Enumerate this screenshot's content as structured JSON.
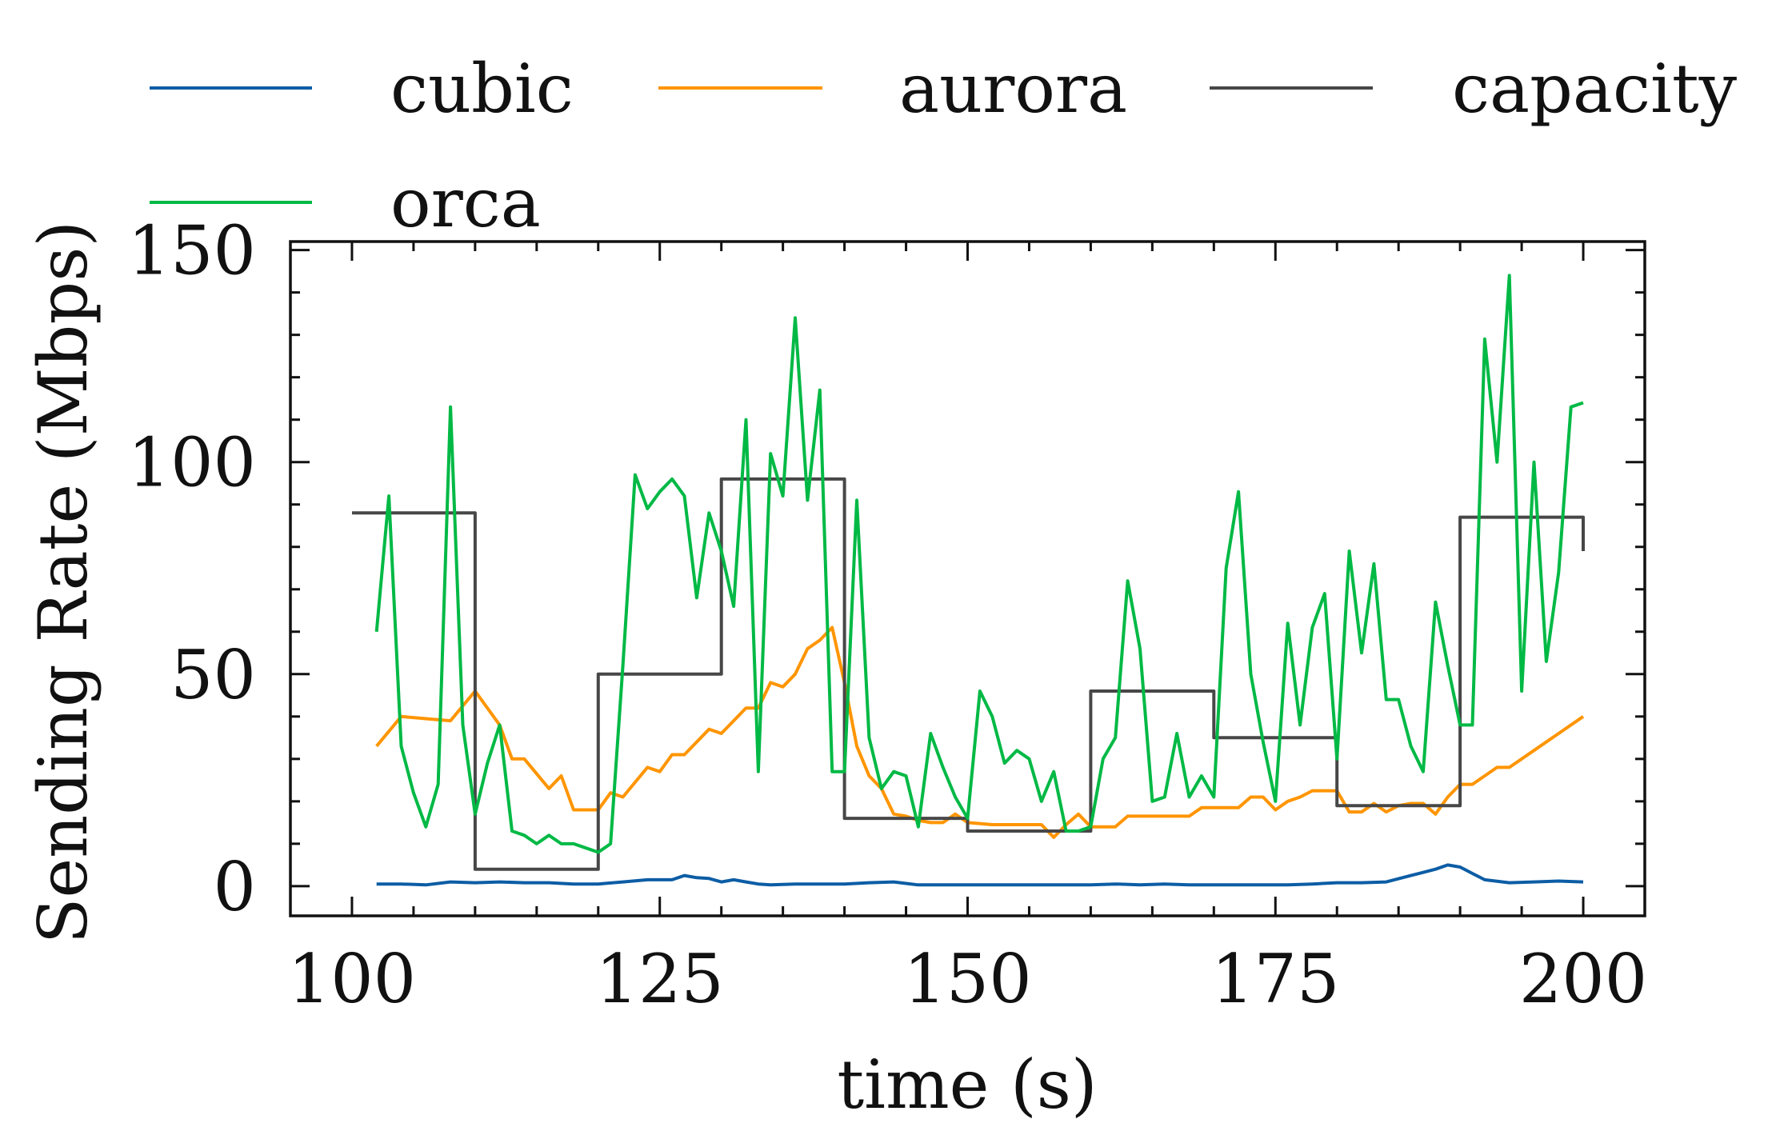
{
  "chart_data": {
    "type": "line",
    "xlabel": "time (s)",
    "ylabel": "Sending Rate (Mbps)",
    "xlim": [
      95,
      205
    ],
    "ylim": [
      -7,
      152
    ],
    "xticks": [
      100,
      125,
      150,
      175,
      200
    ],
    "yticks": [
      0,
      50,
      100,
      150
    ],
    "grid": false,
    "legend_placement": "top",
    "series": [
      {
        "name": "cubic",
        "color": "#0C5DA5",
        "step": false,
        "x": [
          102,
          104,
          106,
          108,
          110,
          112,
          114,
          116,
          118,
          120,
          122,
          124,
          126,
          127,
          128,
          129,
          130,
          131,
          132,
          133,
          134,
          136,
          138,
          140,
          142,
          144,
          146,
          148,
          150,
          152,
          154,
          156,
          158,
          160,
          162,
          164,
          166,
          168,
          170,
          172,
          174,
          176,
          178,
          180,
          182,
          184,
          186,
          188,
          189,
          190,
          191,
          192,
          194,
          196,
          198,
          200
        ],
        "y": [
          0.5,
          0.5,
          0.3,
          1,
          0.8,
          1,
          0.8,
          0.8,
          0.5,
          0.5,
          1,
          1.5,
          1.5,
          2.5,
          2,
          1.8,
          1,
          1.5,
          1,
          0.5,
          0.3,
          0.5,
          0.5,
          0.5,
          0.8,
          1,
          0.3,
          0.3,
          0.3,
          0.3,
          0.3,
          0.3,
          0.3,
          0.3,
          0.5,
          0.3,
          0.5,
          0.3,
          0.3,
          0.3,
          0.3,
          0.3,
          0.5,
          0.8,
          0.8,
          1,
          2.5,
          4,
          5,
          4.5,
          3,
          1.5,
          0.8,
          1,
          1.2,
          1
        ]
      },
      {
        "name": "aurora",
        "color": "#FF9500",
        "step": false,
        "x": [
          102,
          104,
          106,
          108,
          110,
          112,
          113,
          114,
          116,
          117,
          118,
          120,
          121,
          122,
          124,
          125,
          126,
          127,
          128,
          129,
          130,
          131,
          132,
          133,
          134,
          135,
          136,
          137,
          138,
          139,
          140,
          141,
          142,
          143,
          144,
          145,
          146,
          147,
          148,
          149,
          150,
          152,
          154,
          156,
          157,
          158,
          159,
          160,
          161,
          162,
          163,
          164,
          166,
          168,
          169,
          170,
          172,
          173,
          174,
          175,
          176,
          177,
          178,
          179,
          180,
          181,
          182,
          183,
          184,
          185,
          186,
          187,
          188,
          189,
          190,
          191,
          192,
          193,
          194,
          195,
          196,
          198,
          200
        ],
        "y": [
          33,
          40,
          39.5,
          39,
          46,
          38,
          30,
          30,
          23,
          26,
          18,
          18,
          22,
          21,
          28,
          27,
          31,
          31,
          34,
          37,
          36,
          39,
          42,
          42,
          48,
          47,
          50,
          56,
          58,
          61,
          48,
          33,
          26,
          23,
          17,
          16.5,
          15.5,
          15,
          15,
          17,
          15,
          14.5,
          14.5,
          14.5,
          11.5,
          14.5,
          17,
          14,
          14,
          14,
          16.5,
          16.5,
          16.5,
          16.5,
          18.5,
          18.5,
          18.5,
          21,
          21,
          18,
          20,
          21,
          22.5,
          22.5,
          22.5,
          17.5,
          17.5,
          19.5,
          17.5,
          19,
          19.5,
          19.5,
          17,
          21,
          24,
          24,
          26,
          28,
          28,
          30,
          32,
          36,
          40
        ]
      },
      {
        "name": "capacity",
        "color": "#474747",
        "step": true,
        "x": [
          100,
          110,
          110,
          120,
          120,
          130,
          130,
          140,
          140,
          150,
          150,
          160,
          160,
          170,
          170,
          180,
          180,
          190,
          190,
          200,
          200
        ],
        "y": [
          88,
          88,
          4,
          4,
          50,
          50,
          96,
          96,
          16,
          16,
          13,
          13,
          46,
          46,
          35,
          35,
          19,
          19,
          87,
          87,
          79
        ]
      },
      {
        "name": "orca",
        "color": "#00B945",
        "step": false,
        "x": [
          102,
          103,
          104,
          105,
          106,
          107,
          108,
          109,
          110,
          111,
          112,
          113,
          114,
          115,
          116,
          117,
          118,
          119,
          120,
          121,
          122,
          123,
          124,
          125,
          126,
          127,
          128,
          129,
          130,
          131,
          132,
          133,
          134,
          135,
          136,
          137,
          138,
          139,
          140,
          141,
          142,
          143,
          144,
          145,
          146,
          147,
          148,
          149,
          150,
          151,
          152,
          153,
          154,
          155,
          156,
          157,
          158,
          159,
          160,
          161,
          162,
          163,
          164,
          165,
          166,
          167,
          168,
          169,
          170,
          171,
          172,
          173,
          174,
          175,
          176,
          177,
          178,
          179,
          180,
          181,
          182,
          183,
          184,
          185,
          186,
          187,
          188,
          189,
          190,
          191,
          192,
          193,
          194,
          195,
          196,
          197,
          198,
          199,
          200
        ],
        "y": [
          60,
          92,
          33,
          22,
          14,
          24,
          113,
          38,
          17,
          29,
          38,
          13,
          12,
          10,
          12,
          10,
          10,
          9,
          8,
          10,
          52,
          97,
          89,
          93,
          96,
          92,
          68,
          88,
          79,
          66,
          110,
          27,
          102,
          92,
          134,
          91,
          117,
          27,
          27,
          91,
          35,
          23,
          27,
          26,
          14,
          36,
          28,
          21,
          16,
          46,
          40,
          29,
          32,
          30,
          20,
          27,
          13,
          13,
          14,
          30,
          35,
          72,
          56,
          20,
          21,
          36,
          21,
          26,
          21,
          75,
          93,
          50,
          34,
          20,
          62,
          38,
          61,
          69,
          30,
          79,
          55,
          76,
          44,
          44,
          33,
          27,
          67,
          52,
          38,
          38,
          129,
          100,
          144,
          46,
          100,
          53,
          74,
          113,
          114
        ]
      }
    ]
  }
}
